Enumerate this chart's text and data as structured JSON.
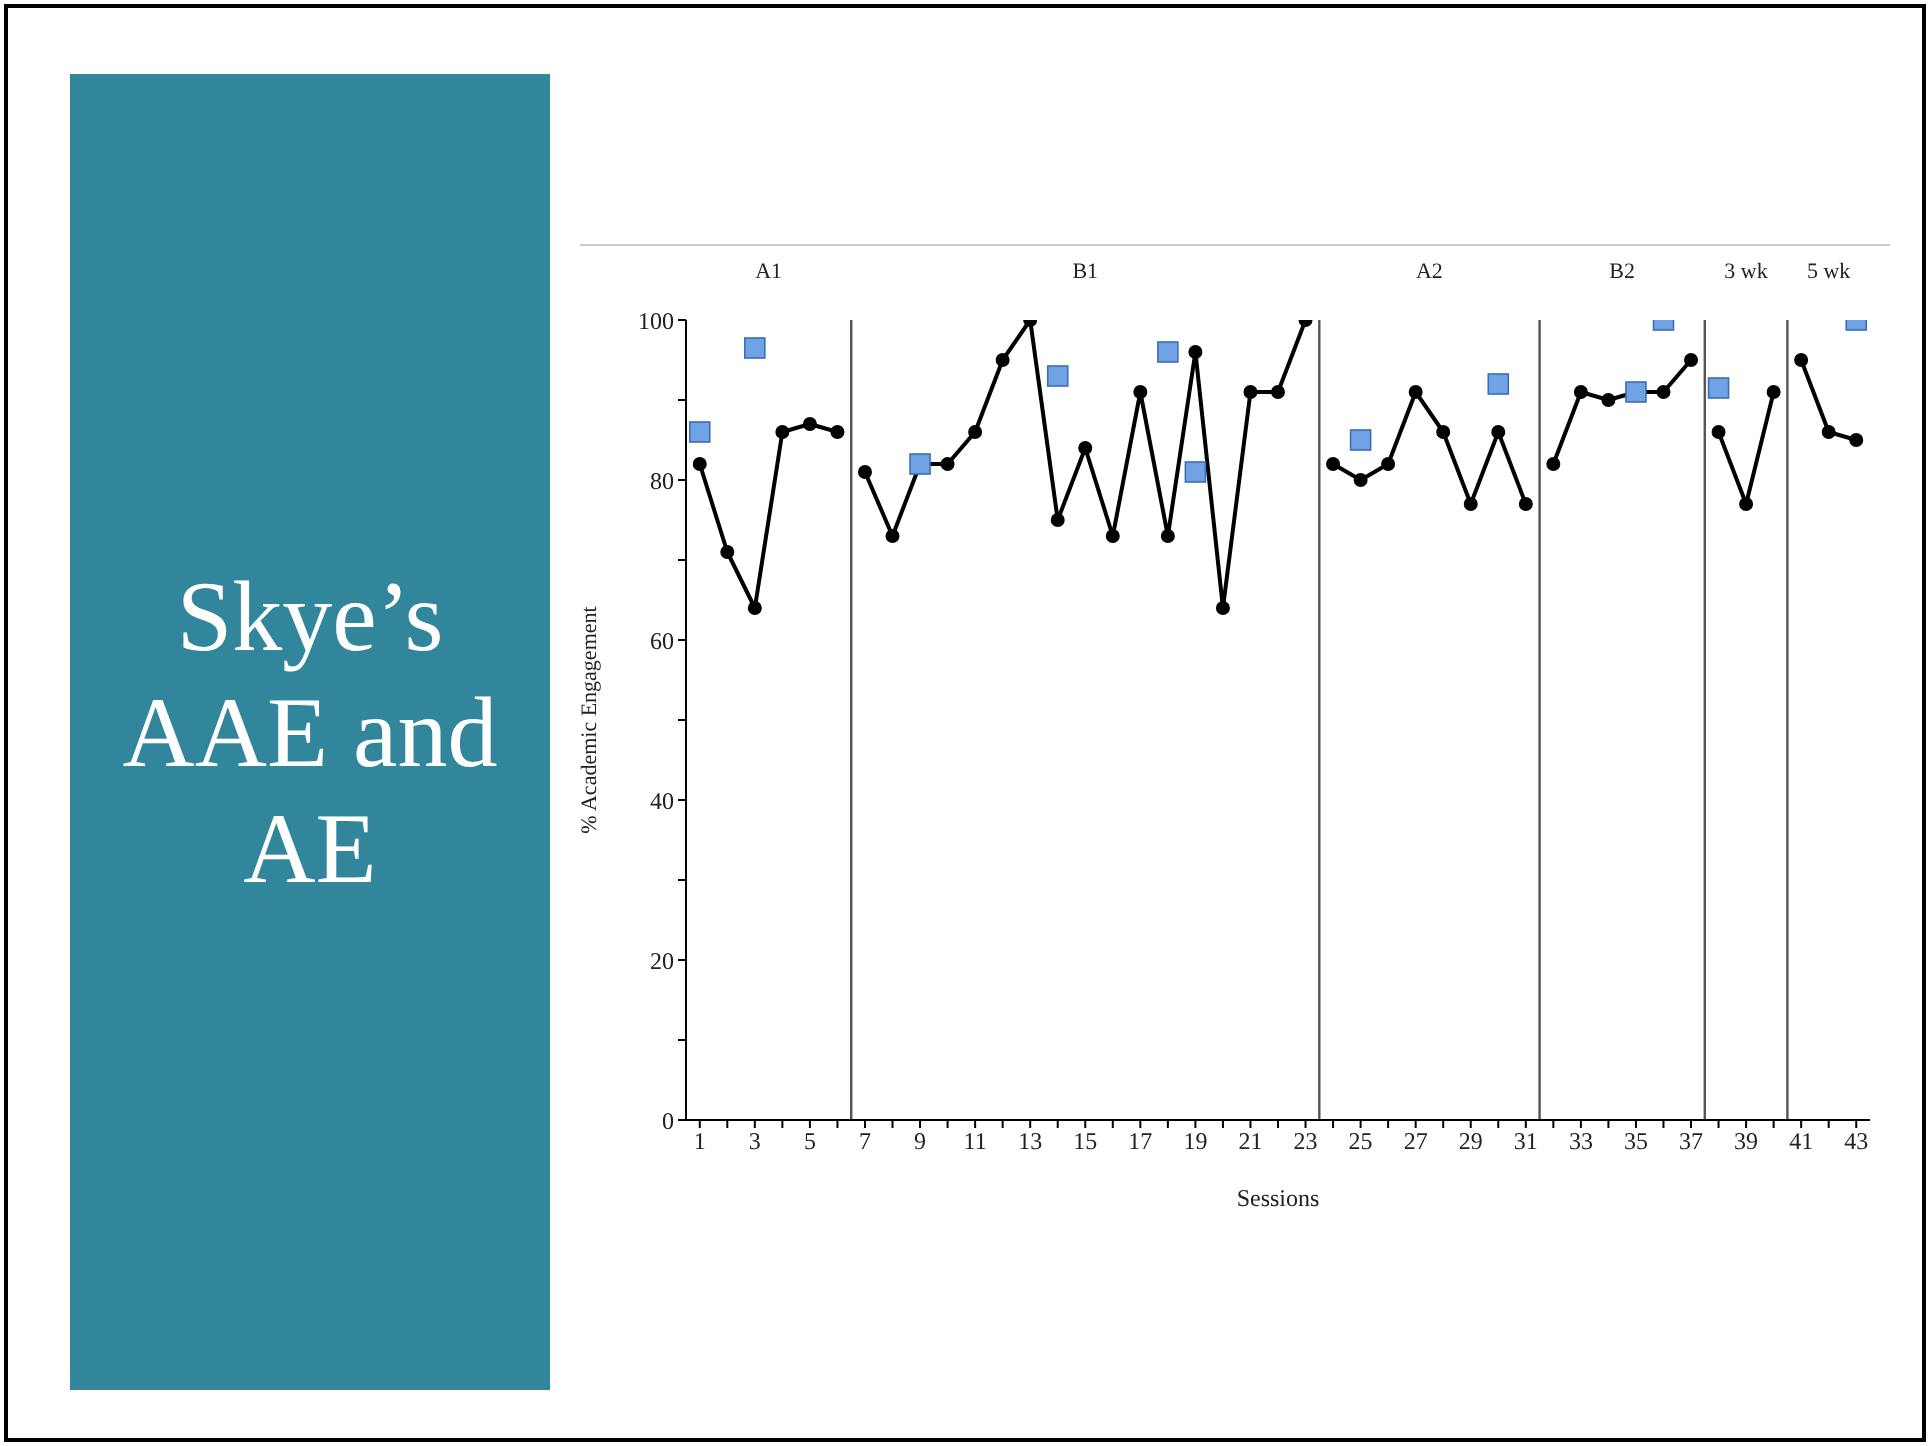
{
  "chart_data": {
    "type": "line",
    "title": "Skye’s AAE and AE",
    "xlabel": "Sessions",
    "ylabel": "% Academic Engagement",
    "xlim": [
      0.5,
      43.5
    ],
    "xticks": [
      1,
      {
        "value": 2,
        "label": null
      },
      3,
      {
        "value": 4,
        "label": null
      },
      5,
      {
        "value": 6,
        "label": null
      },
      7,
      {
        "value": 8,
        "label": null
      },
      9,
      {
        "value": 10,
        "label": null
      },
      11,
      {
        "value": 12,
        "label": null
      },
      13,
      {
        "value": 14,
        "label": null
      },
      15,
      {
        "value": 16,
        "label": null
      },
      17,
      {
        "value": 18,
        "label": null
      },
      19,
      {
        "value": 20,
        "label": null
      },
      21,
      {
        "value": 22,
        "label": null
      },
      23,
      {
        "value": 24,
        "label": null
      },
      25,
      {
        "value": 26,
        "label": null
      },
      27,
      {
        "value": 28,
        "label": null
      },
      29,
      {
        "value": 30,
        "label": null
      },
      31,
      {
        "value": 32,
        "label": null
      },
      33,
      {
        "value": 34,
        "label": null
      },
      35,
      {
        "value": 36,
        "label": null
      },
      37,
      {
        "value": 38,
        "label": null
      },
      39,
      {
        "value": 40,
        "label": null
      },
      41,
      {
        "value": 42,
        "label": null
      },
      43
    ],
    "ylim": [
      0,
      100
    ],
    "yticks": [
      0,
      {
        "value": 10,
        "label": null
      },
      20,
      {
        "value": 30,
        "label": null
      },
      40,
      {
        "value": 50,
        "label": null
      },
      60,
      {
        "value": 70,
        "label": null
      },
      80,
      {
        "value": 90,
        "label": null
      },
      100
    ],
    "series": [
      {
        "color": "#000000",
        "marker": "circle",
        "x": [
          1,
          2,
          3,
          4,
          5,
          6
        ],
        "values": [
          82,
          71,
          64,
          86,
          87,
          86
        ]
      },
      {
        "color": "#000000",
        "marker": "circle",
        "x": [
          7,
          8,
          9,
          10,
          11,
          12,
          13,
          14,
          15,
          16,
          17,
          18,
          19,
          20,
          21,
          22,
          23
        ],
        "values": [
          81,
          73,
          82,
          82,
          86,
          95,
          100,
          75,
          84,
          73,
          91,
          73,
          96,
          64,
          91,
          91,
          100
        ]
      },
      {
        "color": "#000000",
        "marker": "circle",
        "x": [
          24,
          25,
          26,
          27,
          28,
          29,
          30,
          31
        ],
        "values": [
          82,
          80,
          82,
          91,
          86,
          77,
          86,
          77
        ]
      },
      {
        "color": "#000000",
        "marker": "circle",
        "x": [
          32,
          33,
          34,
          35,
          36,
          37
        ],
        "values": [
          82,
          91,
          90,
          91,
          91,
          95
        ]
      },
      {
        "color": "#000000",
        "marker": "circle",
        "x": [
          38,
          39,
          40
        ],
        "values": [
          86,
          77,
          91
        ]
      },
      {
        "color": "#000000",
        "marker": "circle",
        "x": [
          41,
          42,
          43
        ],
        "values": [
          95,
          86,
          85
        ]
      },
      {
        "type": "scatter",
        "color": "#6fa3e6",
        "marker": "square",
        "x": [
          1,
          3,
          9,
          14,
          18,
          19,
          25,
          30,
          35,
          36,
          38,
          43
        ],
        "values": [
          86,
          96.5,
          82,
          93,
          96,
          81,
          85,
          92,
          91,
          100,
          91.5,
          100
        ]
      }
    ],
    "ref_lines": [
      {
        "axis": "x",
        "value": 6.5,
        "color": "#555555"
      },
      {
        "axis": "x",
        "value": 23.5,
        "color": "#555555"
      },
      {
        "axis": "x",
        "value": 31.5,
        "color": "#555555"
      },
      {
        "axis": "x",
        "value": 37.5,
        "color": "#555555"
      },
      {
        "axis": "x",
        "value": 40.5,
        "color": "#555555"
      }
    ],
    "annotations": [
      "A1",
      "B1",
      "A2",
      "B2",
      "3 wk",
      "5 wk"
    ]
  }
}
